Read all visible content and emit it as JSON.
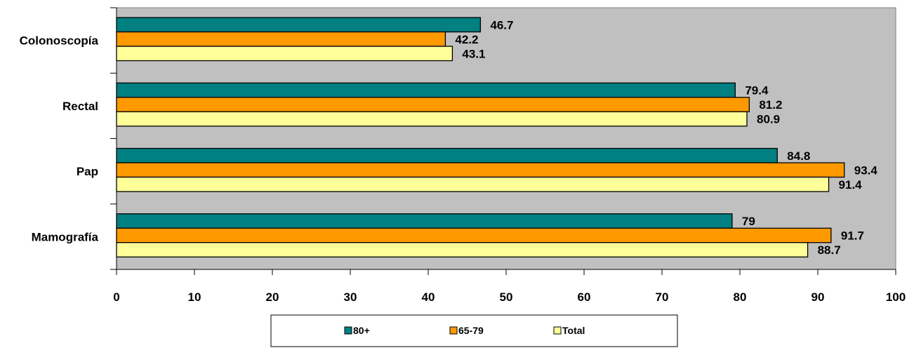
{
  "chart_data": {
    "type": "bar",
    "orientation": "horizontal",
    "categories": [
      "Colonoscopía",
      "Rectal",
      "Pap",
      "Mamografía"
    ],
    "series": [
      {
        "name": "80+",
        "color": "#008080",
        "values": [
          46.7,
          79.4,
          84.8,
          79
        ]
      },
      {
        "name": "65-79",
        "color": "#FF9900",
        "values": [
          42.2,
          81.2,
          93.4,
          91.7
        ]
      },
      {
        "name": "Total",
        "color": "#FFFF99",
        "values": [
          43.1,
          80.9,
          91.4,
          88.7
        ]
      }
    ],
    "xlim": [
      0,
      100
    ],
    "xticks": [
      0,
      10,
      20,
      30,
      40,
      50,
      60,
      70,
      80,
      90,
      100
    ],
    "title": "",
    "xlabel": "",
    "ylabel": "",
    "plot_background": "#C0C0C0",
    "grid": false,
    "legend": {
      "position": "bottom",
      "entries": [
        "80+",
        "65-79",
        "Total"
      ]
    },
    "data_labels": true
  }
}
